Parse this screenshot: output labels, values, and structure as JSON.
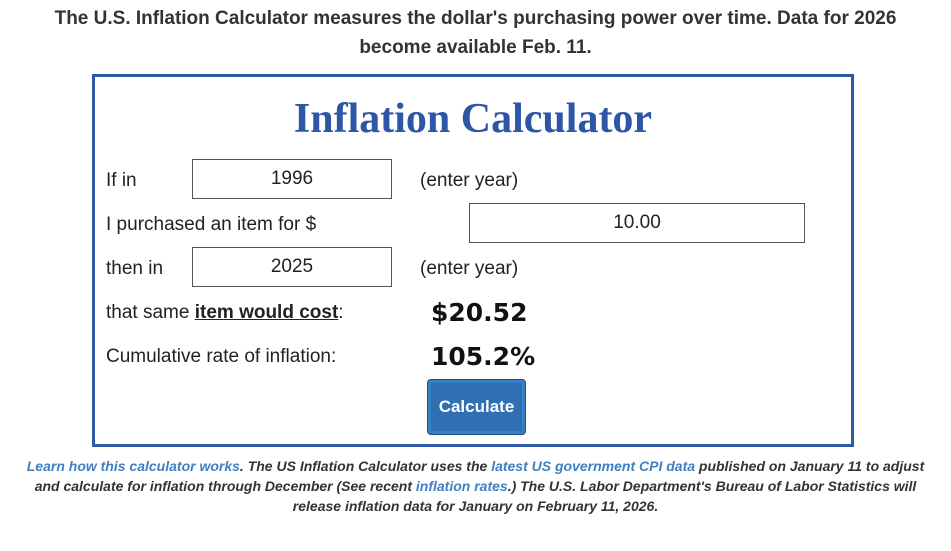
{
  "intro": {
    "line1": "The U.S. Inflation Calculator measures the dollar's purchasing power over time. Data for 2026",
    "line2": "become available Feb. 11."
  },
  "calculator": {
    "title": "Inflation Calculator",
    "if_in_label": "If in",
    "start_year_value": "1996",
    "enter_year_hint_1": "(enter year)",
    "purchased_label": "I purchased an item for $",
    "amount_value": "10.00",
    "then_in_label": "then in",
    "end_year_value": "2025",
    "enter_year_hint_2": "(enter year)",
    "same_item_prefix": "that same ",
    "same_item_link": "item would cost",
    "same_item_suffix": ":",
    "cost_result": "$20.52",
    "cumulative_label": "Cumulative rate of inflation:",
    "cumulative_result": "105.2%",
    "calculate_button": "Calculate"
  },
  "footer": {
    "learn_link": "Learn how this calculator works",
    "text1": ". The US Inflation Calculator uses the ",
    "cpi_link": "latest US government CPI data",
    "text2": " published on January 11 to adjust and calculate for inflation through December (See recent ",
    "rates_link": "inflation rates",
    "text3": ".) The U.S. Labor Department's Bureau of Labor Statistics will release inflation data for January on February 11, 2026."
  },
  "colors": {
    "title_blue": "#2d56a6",
    "border_blue": "#2d5aa8",
    "button_blue": "#2f6fb3",
    "link_blue": "#3f7fc3"
  }
}
